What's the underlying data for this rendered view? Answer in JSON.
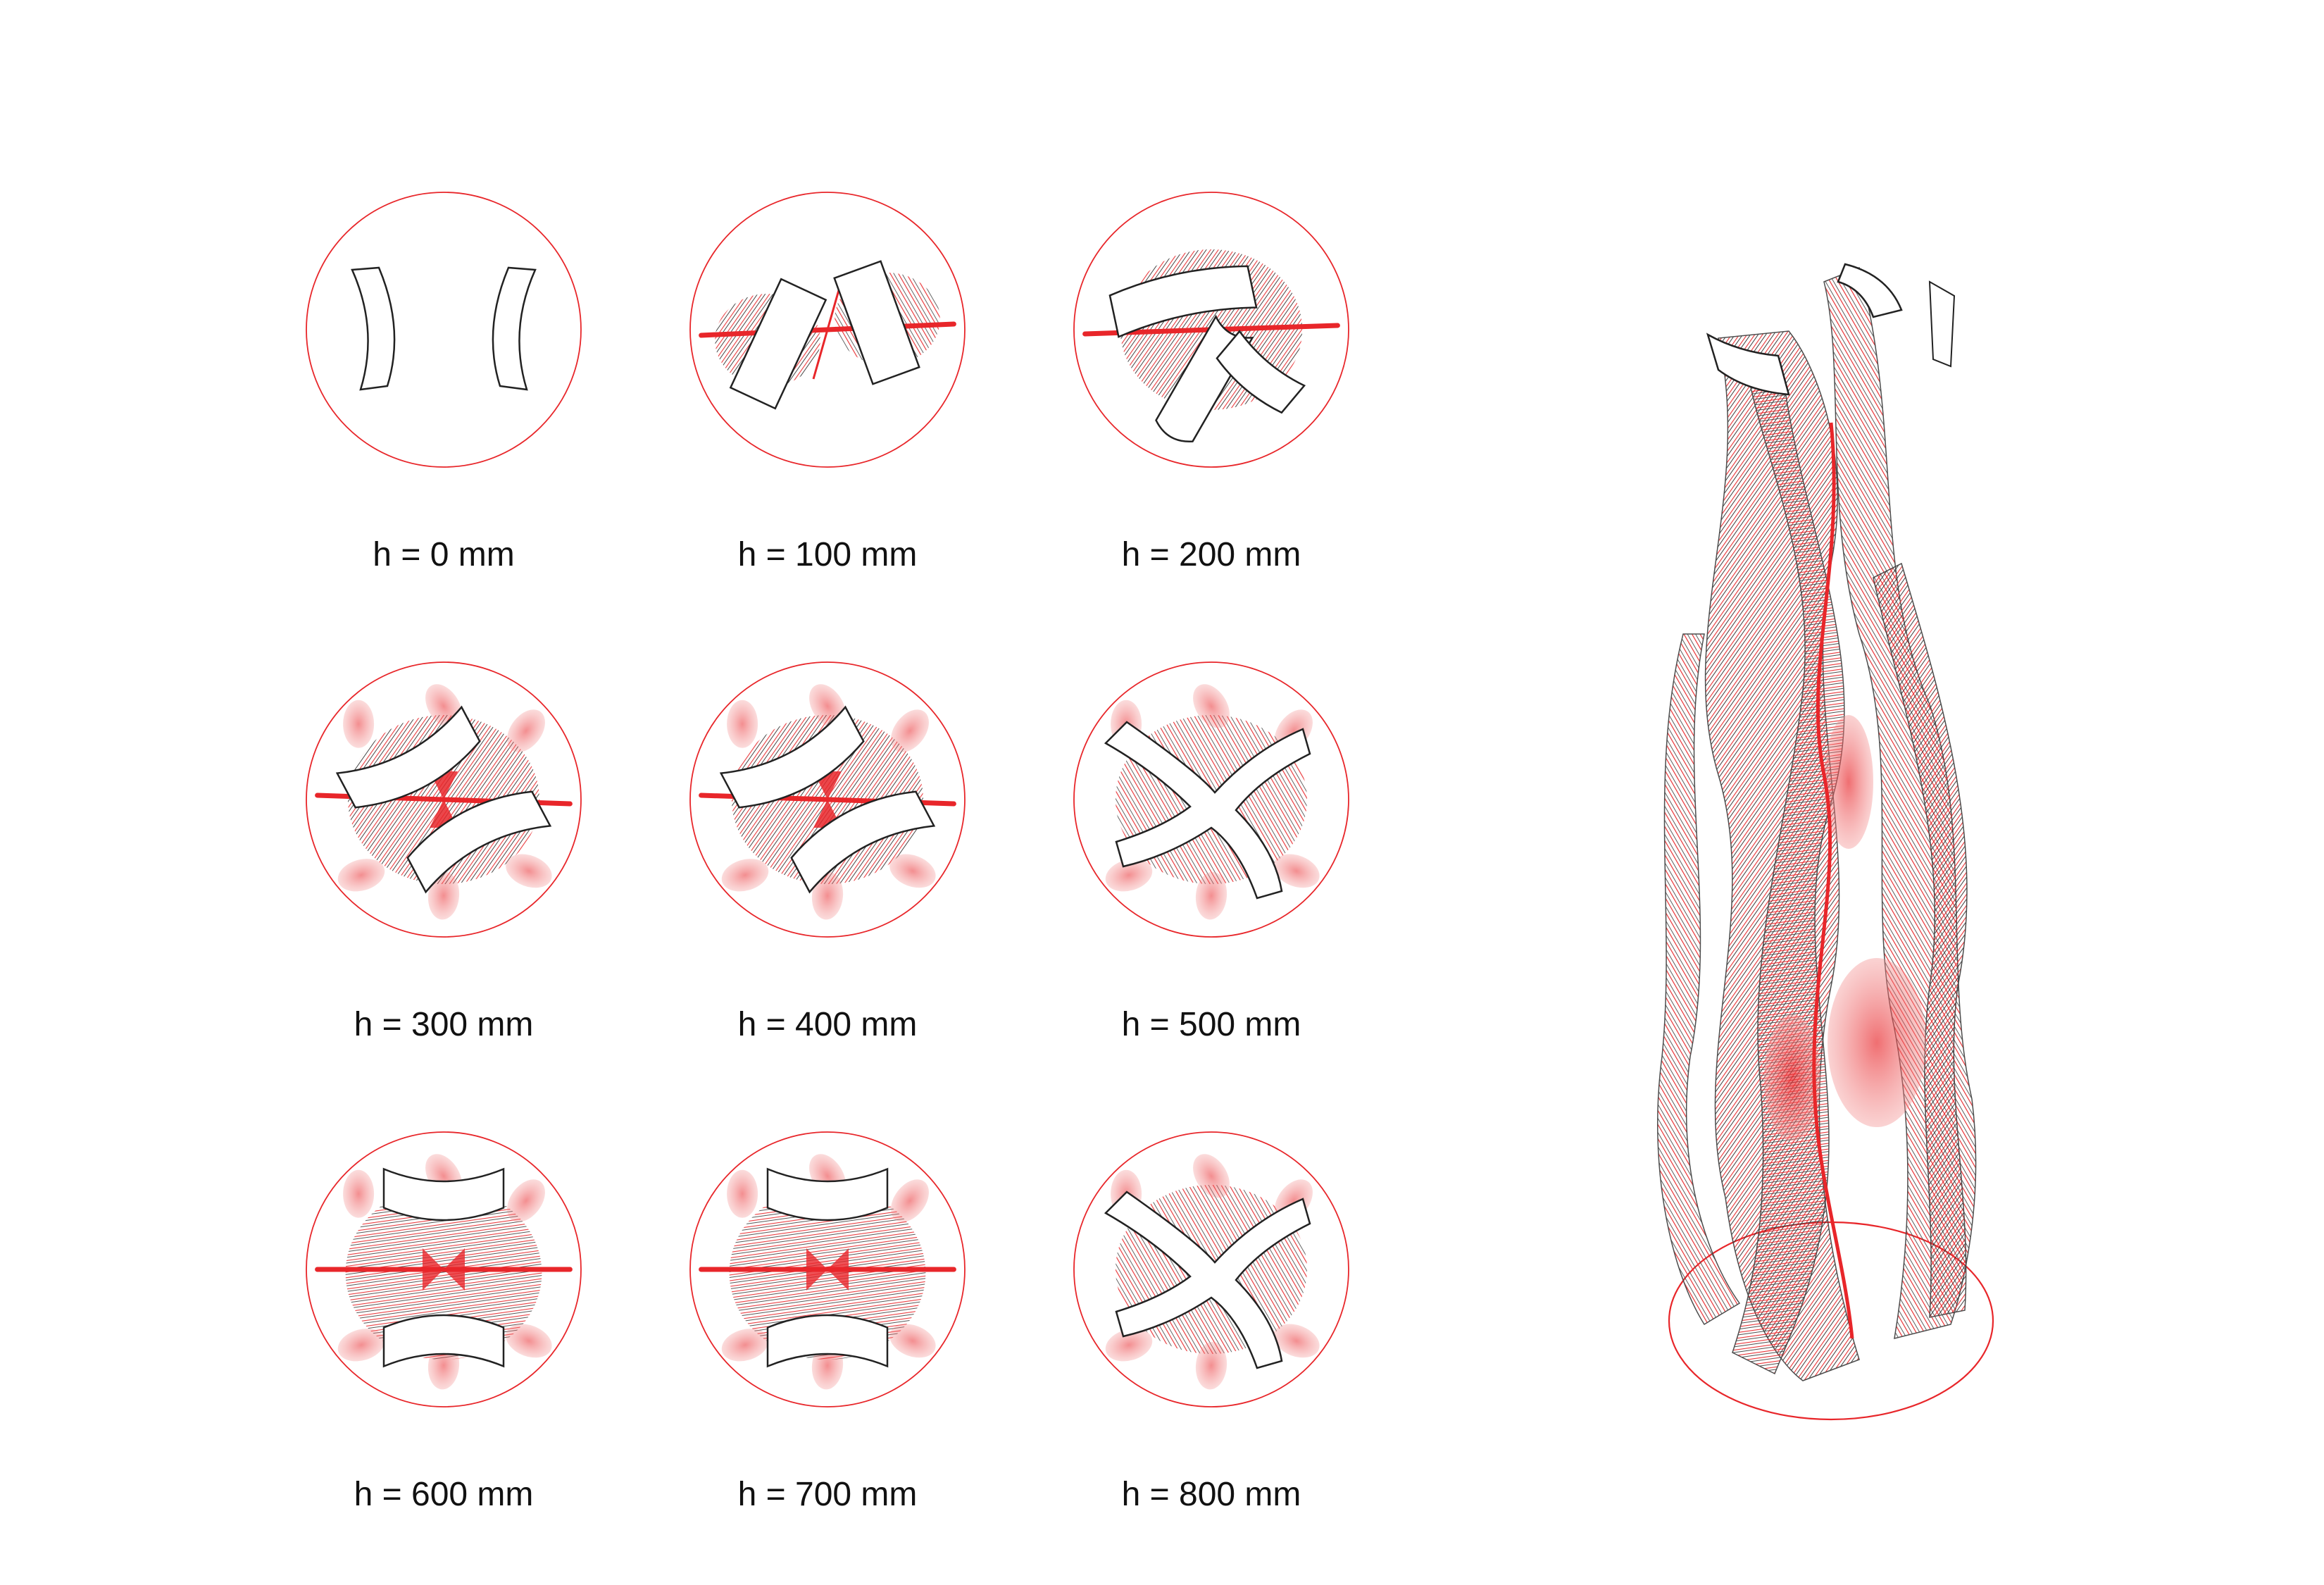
{
  "colors": {
    "accent": "#e8262a",
    "outline": "#222222",
    "background": "#ffffff"
  },
  "sections": [
    {
      "label": "h = 0 mm",
      "shape": "two-arcs"
    },
    {
      "label": "h = 100 mm",
      "shape": "two-arcs-twisted"
    },
    {
      "label": "h = 200 mm",
      "shape": "y-branch"
    },
    {
      "label": "h = 300 mm",
      "shape": "two-arcs-diagonal"
    },
    {
      "label": "h = 400 mm",
      "shape": "two-arcs-diagonal"
    },
    {
      "label": "h = 500 mm",
      "shape": "cross"
    },
    {
      "label": "h = 600 mm",
      "shape": "two-arcs-horizontal"
    },
    {
      "label": "h = 700 mm",
      "shape": "two-arcs-horizontal"
    },
    {
      "label": "h = 800 mm",
      "shape": "cross"
    }
  ],
  "perspective": {
    "name": "twisted-column-perspective"
  }
}
